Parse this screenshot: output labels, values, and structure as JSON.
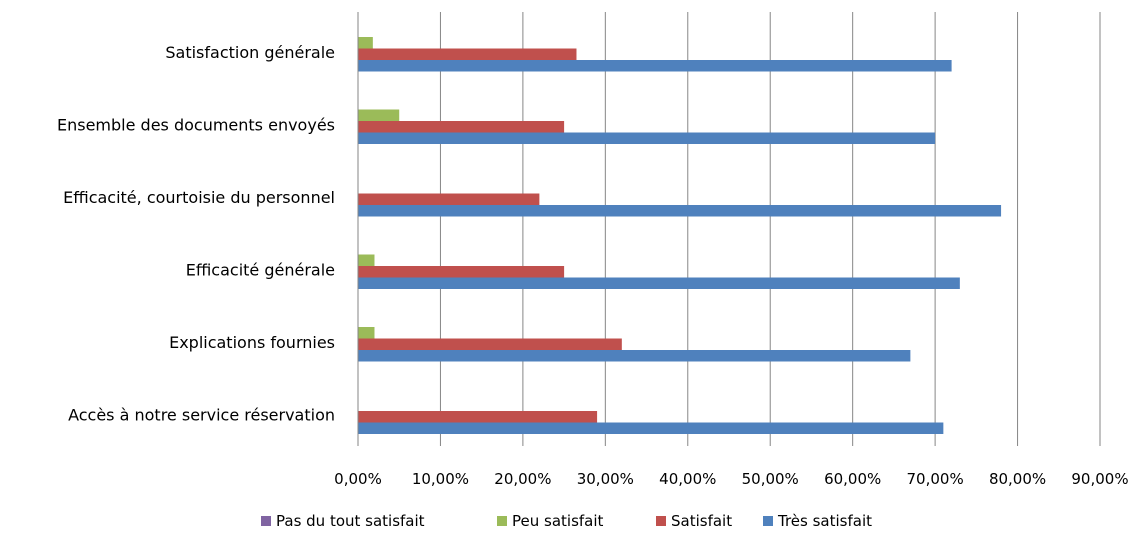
{
  "chart_data": {
    "type": "bar",
    "orientation": "horizontal",
    "categories": [
      "Satisfaction générale",
      "Ensemble des documents envoyés",
      "Efficacité, courtoisie du personnel",
      "Efficacité générale",
      "Explications fournies",
      "Accès à notre service réservation"
    ],
    "series": [
      {
        "name": "Pas du tout satisfait",
        "color": "#8064a2",
        "values": [
          0,
          0,
          0,
          0,
          0,
          0
        ]
      },
      {
        "name": "Peu satisfait",
        "color": "#9bbb59",
        "values": [
          1.8,
          5.0,
          0,
          2.0,
          2.0,
          0
        ]
      },
      {
        "name": "Satisfait",
        "color": "#c0504d",
        "values": [
          26.5,
          25.0,
          22.0,
          25.0,
          32.0,
          29.0
        ]
      },
      {
        "name": "Très satisfait",
        "color": "#4f81bd",
        "values": [
          72.0,
          70.0,
          78.0,
          73.0,
          67.0,
          71.0
        ]
      }
    ],
    "xlim": [
      0,
      90
    ],
    "x_ticks": [
      "0,00%",
      "10,00%",
      "20,00%",
      "30,00%",
      "40,00%",
      "50,00%",
      "60,00%",
      "70,00%",
      "80,00%",
      "90,00%"
    ],
    "grid": true,
    "legend_position": "bottom",
    "title": "",
    "xlabel": "",
    "ylabel": ""
  }
}
